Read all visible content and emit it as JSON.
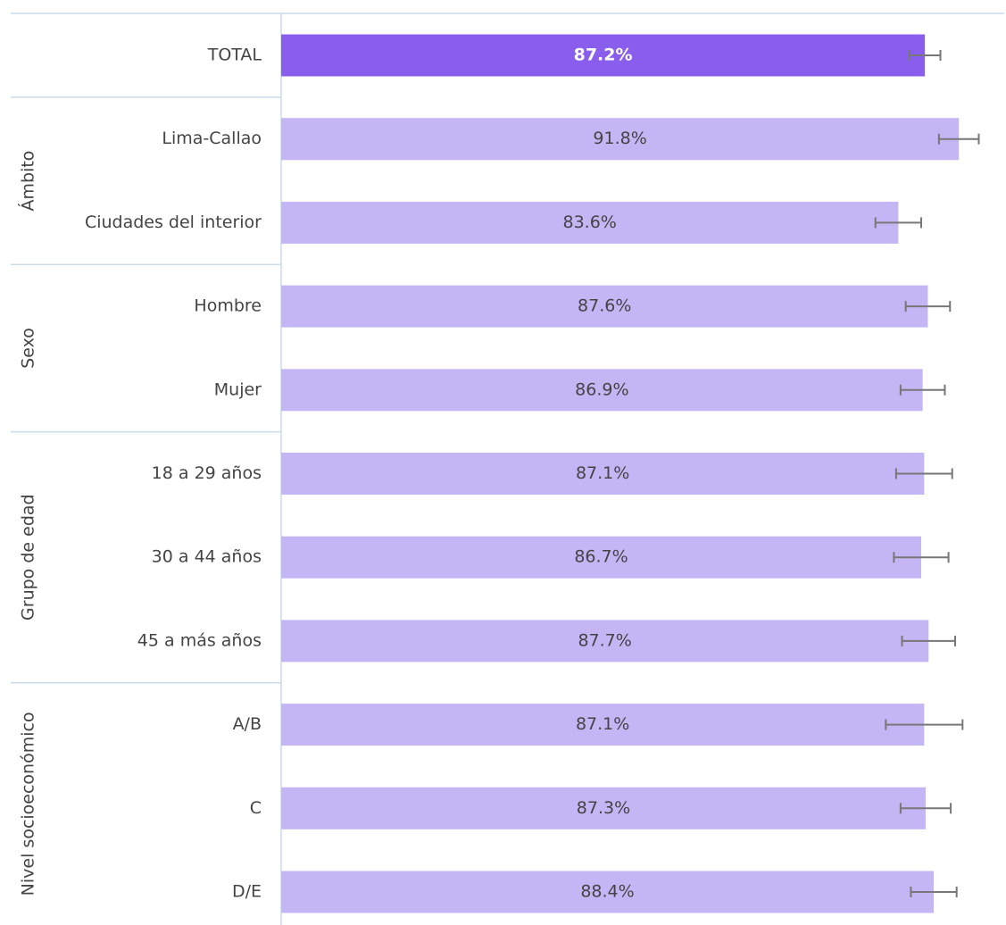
{
  "chart_data": {
    "type": "bar",
    "orientation": "horizontal",
    "categories": [
      "TOTAL",
      "Lima-Callao",
      "Ciudades del interior",
      "Hombre",
      "Mujer",
      "18 a 29 años",
      "30 a 44 años",
      "45 a más años",
      "A/B",
      "C",
      "D/E"
    ],
    "category_groups": [
      null,
      "Ámbito",
      "Ámbito",
      "Sexo",
      "Sexo",
      "Grupo de edad",
      "Grupo de edad",
      "Grupo de edad",
      "Nivel socioeconómico",
      "Nivel socioeconómico",
      "Nivel socioeconómico"
    ],
    "values": [
      87.2,
      91.8,
      83.6,
      87.6,
      86.9,
      87.1,
      86.7,
      87.7,
      87.1,
      87.3,
      88.4
    ],
    "value_labels": [
      "87.2%",
      "91.8%",
      "83.6%",
      "87.6%",
      "86.9%",
      "87.1%",
      "86.7%",
      "87.7%",
      "87.1%",
      "87.3%",
      "88.4%"
    ],
    "errors": [
      2.1,
      2.7,
      3.1,
      3.0,
      3.0,
      3.8,
      3.7,
      3.6,
      5.2,
      3.4,
      3.1
    ],
    "colors": [
      "#8a5eed",
      "#c4b5f5",
      "#c4b5f5",
      "#c4b5f5",
      "#c4b5f5",
      "#c4b5f5",
      "#c4b5f5",
      "#c4b5f5",
      "#c4b5f5",
      "#c4b5f5",
      "#c4b5f5"
    ],
    "error_color": "#777777",
    "xlim": [
      0,
      100
    ]
  }
}
